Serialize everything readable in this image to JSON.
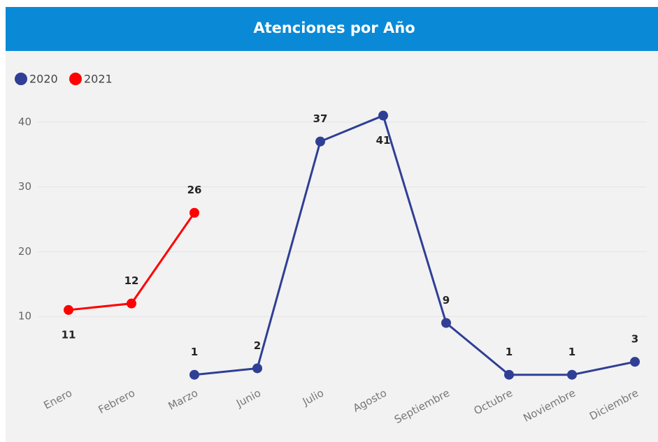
{
  "chart_data": {
    "type": "line",
    "title": "Atenciones por Año",
    "categories": [
      "Enero",
      "Febrero",
      "Marzo",
      "Junio",
      "Julio",
      "Agosto",
      "Septiembre",
      "Octubre",
      "Noviembre",
      "Diciembre"
    ],
    "series": [
      {
        "name": "2020",
        "color": "#2f3f95",
        "values": [
          null,
          null,
          1,
          2,
          37,
          41,
          9,
          1,
          1,
          3
        ]
      },
      {
        "name": "2021",
        "color": "#ff0000",
        "values": [
          11,
          12,
          26,
          null,
          null,
          null,
          null,
          null,
          null,
          null
        ]
      }
    ],
    "ylim": [
      0,
      43
    ],
    "yticks": [
      10,
      20,
      30,
      40
    ],
    "grid": true,
    "legend": "top-left"
  }
}
